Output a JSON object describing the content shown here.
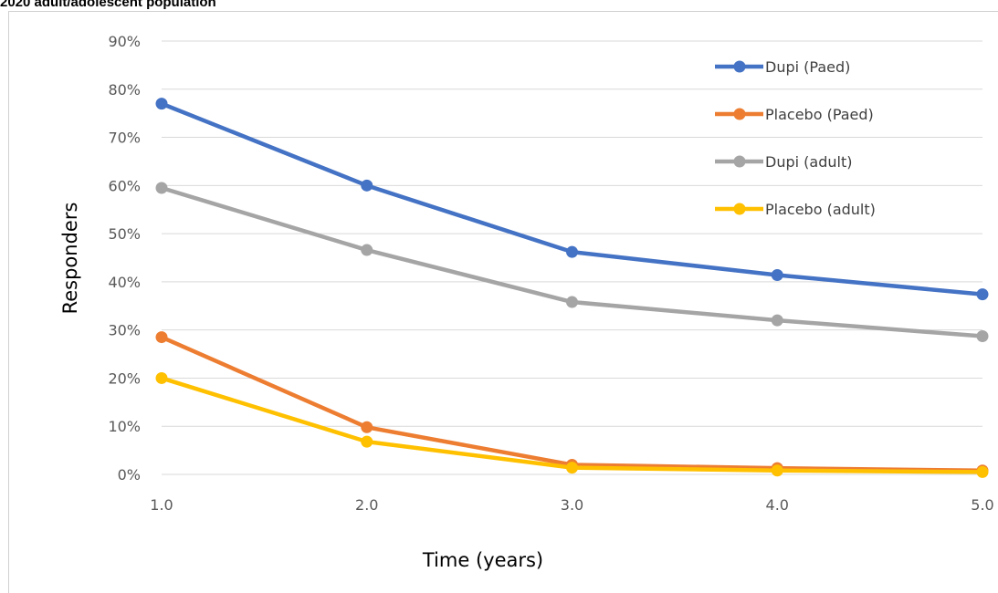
{
  "caption": "2020 adult/adolescent population",
  "chart_data": {
    "type": "line",
    "xlabel": "Time (years)",
    "ylabel": "Responders",
    "xlim": [
      1.0,
      5.0
    ],
    "ylim": [
      0,
      0.9
    ],
    "x_ticks": [
      "1.0",
      "2.0",
      "3.0",
      "4.0",
      "5.0"
    ],
    "y_ticks": [
      "0%",
      "10%",
      "20%",
      "30%",
      "40%",
      "50%",
      "60%",
      "70%",
      "80%",
      "90%"
    ],
    "grid": "horizontal",
    "legend_position": "top-right",
    "x": [
      1.0,
      2.0,
      3.0,
      4.0,
      5.0
    ],
    "series": [
      {
        "name": "Dupi (Paed)",
        "color": "#4472C4",
        "values": [
          0.77,
          0.6,
          0.462,
          0.414,
          0.374
        ]
      },
      {
        "name": "Placebo (Paed)",
        "color": "#ED7D31",
        "values": [
          0.285,
          0.098,
          0.02,
          0.013,
          0.008
        ]
      },
      {
        "name": "Dupi (adult)",
        "color": "#A5A5A5",
        "values": [
          0.595,
          0.466,
          0.358,
          0.32,
          0.287
        ]
      },
      {
        "name": "Placebo (adult)",
        "color": "#FFC000",
        "values": [
          0.2,
          0.068,
          0.014,
          0.008,
          0.005
        ]
      }
    ]
  }
}
